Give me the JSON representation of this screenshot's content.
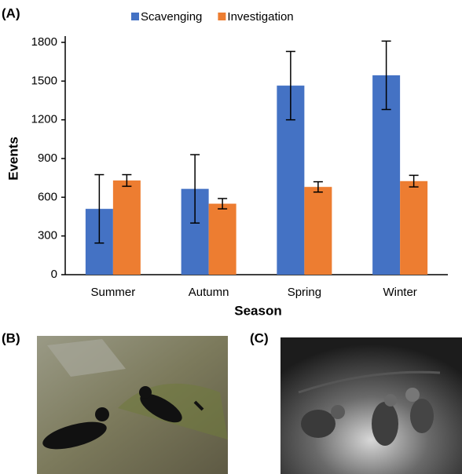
{
  "panel_labels": [
    "(A)",
    "(B)",
    "(C)"
  ],
  "chart_data": {
    "type": "bar",
    "x_label": "Season",
    "y_label": "Events",
    "categories": [
      "Summer",
      "Autumn",
      "Spring",
      "Winter"
    ],
    "series": [
      {
        "name": "Scavenging",
        "color": "#4472c4",
        "values": [
          510,
          665,
          1465,
          1545
        ],
        "errors": [
          265,
          265,
          265,
          265
        ]
      },
      {
        "name": "Investigation",
        "color": "#ed7d31",
        "values": [
          730,
          550,
          680,
          725
        ],
        "errors": [
          45,
          40,
          40,
          45
        ]
      }
    ],
    "ylim": [
      0,
      1800
    ],
    "yticks": [
      0,
      300,
      600,
      900,
      1200,
      1500,
      1800
    ],
    "legend": "top"
  }
}
